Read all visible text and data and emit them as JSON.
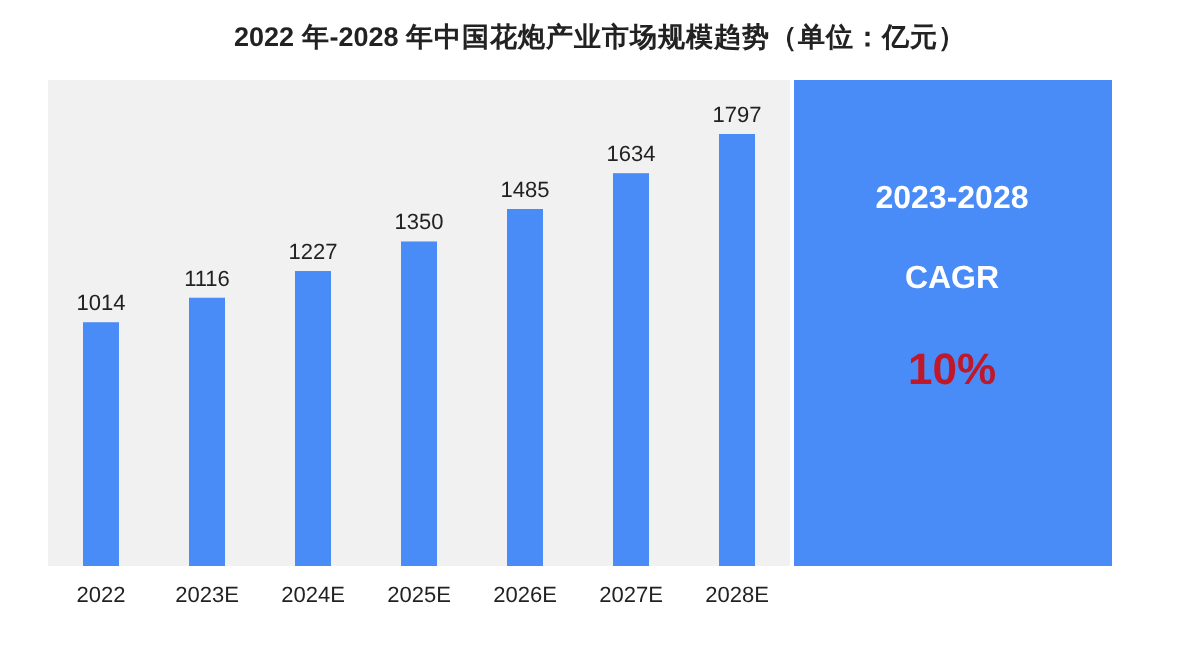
{
  "chart_data": [
    {
      "type": "bar",
      "title": "2022 年-2028 年中国花炮产业市场规模趋势（单位：亿元）",
      "categories": [
        "2022",
        "2023E",
        "2024E",
        "2025E",
        "2026E",
        "2027E",
        "2028E"
      ],
      "values": [
        1014,
        1116,
        1227,
        1350,
        1485,
        1634,
        1797
      ],
      "color": "#4a8cf7",
      "data_labels": true
    },
    {
      "type": "other",
      "annotations": [
        "2023-2028",
        "CAGR",
        "10%"
      ]
    }
  ]
}
